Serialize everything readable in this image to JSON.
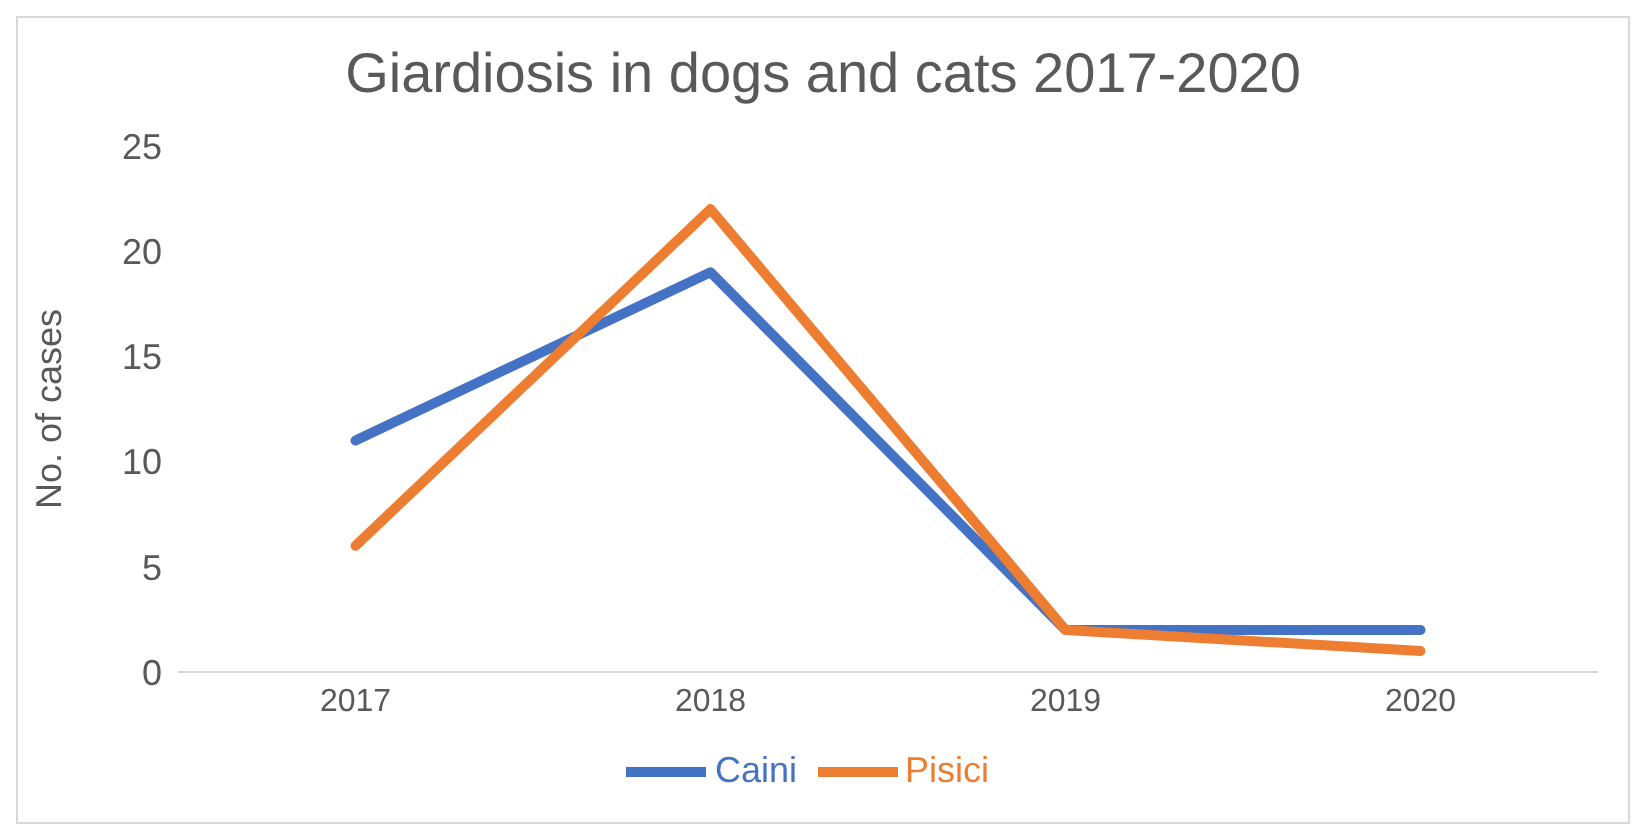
{
  "chart_data": {
    "type": "line",
    "title": "Giardiosis in dogs and cats 2017-2020",
    "ylabel": "No. of cases",
    "categories": [
      "2017",
      "2018",
      "2019",
      "2020"
    ],
    "series": [
      {
        "name": "Caini",
        "color": "#4472c4",
        "values": [
          11,
          19,
          2,
          2
        ]
      },
      {
        "name": "Pisici",
        "color": "#ed7d31",
        "values": [
          6,
          22,
          2,
          1
        ]
      }
    ],
    "ylim": [
      0,
      25
    ],
    "yticks": [
      0,
      5,
      10,
      15,
      20,
      25
    ],
    "grid": false,
    "legend": "bottom",
    "marker": "none",
    "line_style": "solid"
  }
}
